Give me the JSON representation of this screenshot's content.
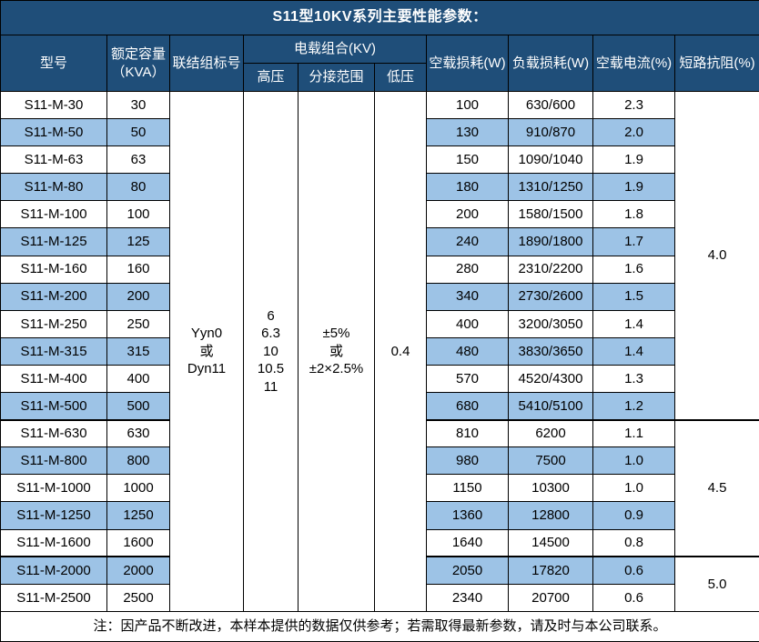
{
  "title": "S11型10KV系列主要性能参数：",
  "note": "注：因产品不断改进，本样本提供的数据仅供参考；若需取得最新参数，请及时与本公司联系。",
  "colors": {
    "header_bg": "#1F4E79",
    "stripe_bg": "#9DC3E6",
    "row_bg": "#FFFFFF",
    "header_text": "#FFFFFF",
    "body_text": "#000000",
    "border": "#000000"
  },
  "table": {
    "headers": {
      "model": "型号",
      "capacity": "额定容量\n（KVA）",
      "connection": "联结组标号",
      "voltage_group": "电载组合(KV)",
      "hv": "高压",
      "tap_range": "分接范围",
      "lv": "低压",
      "no_load_loss": "空载损耗(W)",
      "load_loss": "负载损耗(W)",
      "no_load_current": "空载电流(%)",
      "impedance": "短路抗阻(%)"
    },
    "merged": {
      "connection_lines": [
        "Yyn0",
        "或",
        "Dyn11"
      ],
      "hv_lines": [
        "6",
        "6.3",
        "10",
        "10.5",
        "11"
      ],
      "tap_lines": [
        "±5%",
        "或",
        "±2×2.5%"
      ],
      "lv": "0.4"
    },
    "impedance_groups": [
      {
        "value": "4.0",
        "rows": 12
      },
      {
        "value": "4.5",
        "rows": 5
      },
      {
        "value": "5.0",
        "rows": 2
      }
    ],
    "rows": [
      {
        "model": "S11-M-30",
        "kva": "30",
        "no_load_loss": "100",
        "load_loss": "630/600",
        "no_load_current": "2.3"
      },
      {
        "model": "S11-M-50",
        "kva": "50",
        "no_load_loss": "130",
        "load_loss": "910/870",
        "no_load_current": "2.0"
      },
      {
        "model": "S11-M-63",
        "kva": "63",
        "no_load_loss": "150",
        "load_loss": "1090/1040",
        "no_load_current": "1.9"
      },
      {
        "model": "S11-M-80",
        "kva": "80",
        "no_load_loss": "180",
        "load_loss": "1310/1250",
        "no_load_current": "1.9"
      },
      {
        "model": "S11-M-100",
        "kva": "100",
        "no_load_loss": "200",
        "load_loss": "1580/1500",
        "no_load_current": "1.8"
      },
      {
        "model": "S11-M-125",
        "kva": "125",
        "no_load_loss": "240",
        "load_loss": "1890/1800",
        "no_load_current": "1.7"
      },
      {
        "model": "S11-M-160",
        "kva": "160",
        "no_load_loss": "280",
        "load_loss": "2310/2200",
        "no_load_current": "1.6"
      },
      {
        "model": "S11-M-200",
        "kva": "200",
        "no_load_loss": "340",
        "load_loss": "2730/2600",
        "no_load_current": "1.5"
      },
      {
        "model": "S11-M-250",
        "kva": "250",
        "no_load_loss": "400",
        "load_loss": "3200/3050",
        "no_load_current": "1.4"
      },
      {
        "model": "S11-M-315",
        "kva": "315",
        "no_load_loss": "480",
        "load_loss": "3830/3650",
        "no_load_current": "1.4"
      },
      {
        "model": "S11-M-400",
        "kva": "400",
        "no_load_loss": "570",
        "load_loss": "4520/4300",
        "no_load_current": "1.3"
      },
      {
        "model": "S11-M-500",
        "kva": "500",
        "no_load_loss": "680",
        "load_loss": "5410/5100",
        "no_load_current": "1.2"
      },
      {
        "model": "S11-M-630",
        "kva": "630",
        "no_load_loss": "810",
        "load_loss": "6200",
        "no_load_current": "1.1"
      },
      {
        "model": "S11-M-800",
        "kva": "800",
        "no_load_loss": "980",
        "load_loss": "7500",
        "no_load_current": "1.0"
      },
      {
        "model": "S11-M-1000",
        "kva": "1000",
        "no_load_loss": "1150",
        "load_loss": "10300",
        "no_load_current": "1.0"
      },
      {
        "model": "S11-M-1250",
        "kva": "1250",
        "no_load_loss": "1360",
        "load_loss": "12800",
        "no_load_current": "0.9"
      },
      {
        "model": "S11-M-1600",
        "kva": "1600",
        "no_load_loss": "1640",
        "load_loss": "14500",
        "no_load_current": "0.8"
      },
      {
        "model": "S11-M-2000",
        "kva": "2000",
        "no_load_loss": "2050",
        "load_loss": "17820",
        "no_load_current": "0.6"
      },
      {
        "model": "S11-M-2500",
        "kva": "2500",
        "no_load_loss": "2340",
        "load_loss": "20700",
        "no_load_current": "0.6"
      }
    ]
  }
}
